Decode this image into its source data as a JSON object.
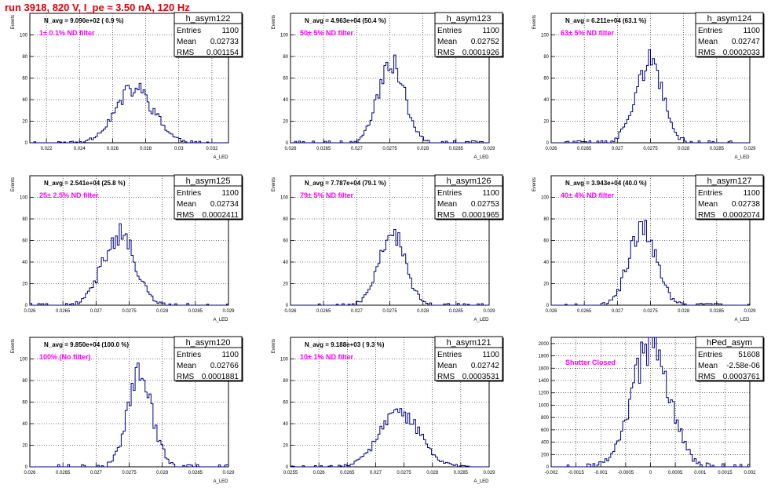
{
  "title": "run 3918,   820 V, I_pe ≈ 3.50 nA, 120 Hz",
  "chart_data": [
    {
      "type": "histogram",
      "name": "h_asym122",
      "entries": "1100",
      "mean": "0.02733",
      "rms": "0.001154",
      "n_avg": "N_avg = 9.090e+02 ( 0.9 %)",
      "label": "1± 0.1% ND filter",
      "ylabel": "Events",
      "xlabel": "A_LED",
      "xlim": [
        0.021,
        0.033
      ],
      "ylim": [
        0,
        120
      ],
      "xticks": [
        0.022,
        0.024,
        0.026,
        0.028,
        0.03,
        0.032
      ],
      "xticklabels": [
        "0.022",
        "0.024",
        "0.026",
        "0.028",
        "0.03",
        "0.032"
      ],
      "yticks": [
        0,
        20,
        40,
        60,
        80,
        100,
        120
      ],
      "yticklabels": [
        "0",
        "20",
        "40",
        "60",
        "80",
        "100",
        ""
      ],
      "mean_value": 0.02733,
      "rms_value": 0.001154,
      "peak": 50,
      "seed": 11
    },
    {
      "type": "histogram",
      "name": "h_asym123",
      "entries": "1100",
      "mean": "0.02752",
      "rms": "0.0001926",
      "n_avg": "N_avg = 4.963e+04 (50.4 %)",
      "label": "50± 5% ND filter",
      "ylabel": "Events",
      "xlabel": "A_LED",
      "xlim": [
        0.026,
        0.029
      ],
      "ylim": [
        0,
        120
      ],
      "xticks": [
        0.026,
        0.0265,
        0.027,
        0.0275,
        0.028,
        0.0285,
        0.029
      ],
      "xticklabels": [
        "0.026",
        "0.0265",
        "0.027",
        "0.0275",
        "0.028",
        "0.0285",
        "0.029"
      ],
      "yticks": [
        0,
        20,
        40,
        60,
        80,
        100,
        120
      ],
      "yticklabels": [
        "0",
        "20",
        "40",
        "60",
        "80",
        "100",
        ""
      ],
      "mean_value": 0.02752,
      "rms_value": 0.0001926,
      "peak": 78,
      "seed": 23
    },
    {
      "type": "histogram",
      "name": "h_asym124",
      "entries": "1100",
      "mean": "0.02747",
      "rms": "0.0002033",
      "n_avg": "N_avg = 6.211e+04 (63.1 %)",
      "label": "63± 5% ND filter",
      "ylabel": "Events",
      "xlabel": "A_LED",
      "xlim": [
        0.026,
        0.029
      ],
      "ylim": [
        0,
        120
      ],
      "xticks": [
        0.026,
        0.0265,
        0.027,
        0.0275,
        0.028,
        0.0285,
        0.029
      ],
      "xticklabels": [
        "0.026",
        "0.0265",
        "0.027",
        "0.0275",
        "0.028",
        "0.0285",
        "0.029"
      ],
      "yticks": [
        0,
        20,
        40,
        60,
        80,
        100,
        120
      ],
      "yticklabels": [
        "0",
        "20",
        "40",
        "60",
        "80",
        "100",
        ""
      ],
      "mean_value": 0.02747,
      "rms_value": 0.0002033,
      "peak": 75,
      "seed": 37
    },
    {
      "type": "histogram",
      "name": "h_asym125",
      "entries": "1100",
      "mean": "0.02734",
      "rms": "0.0002411",
      "n_avg": "N_avg = 2.541e+04 (25.8 %)",
      "label": "25± 2.5% ND filter",
      "ylabel": "Events",
      "xlabel": "A_LED",
      "xlim": [
        0.026,
        0.029
      ],
      "ylim": [
        0,
        120
      ],
      "xticks": [
        0.026,
        0.0265,
        0.027,
        0.0275,
        0.028,
        0.0285,
        0.029
      ],
      "xticklabels": [
        "0.026",
        "0.0265",
        "0.027",
        "0.0275",
        "0.028",
        "0.0285",
        "0.029"
      ],
      "yticks": [
        0,
        20,
        40,
        60,
        80,
        100,
        120
      ],
      "yticklabels": [
        "0",
        "20",
        "40",
        "60",
        "80",
        "100",
        ""
      ],
      "mean_value": 0.02734,
      "rms_value": 0.0002411,
      "peak": 67,
      "seed": 41
    },
    {
      "type": "histogram",
      "name": "h_asym126",
      "entries": "1100",
      "mean": "0.02753",
      "rms": "0.0001965",
      "n_avg": "N_avg = 7.787e+04 (79.1 %)",
      "label": "79± 5% ND filter",
      "ylabel": "Events",
      "xlabel": "A_LED",
      "xlim": [
        0.026,
        0.029
      ],
      "ylim": [
        0,
        120
      ],
      "xticks": [
        0.026,
        0.0265,
        0.027,
        0.0275,
        0.028,
        0.0285,
        0.029
      ],
      "xticklabels": [
        "0.026",
        "0.0265",
        "0.027",
        "0.0275",
        "0.028",
        "0.0285",
        "0.029"
      ],
      "yticks": [
        0,
        20,
        40,
        60,
        80,
        100,
        120
      ],
      "yticklabels": [
        "0",
        "20",
        "40",
        "60",
        "80",
        "100",
        ""
      ],
      "mean_value": 0.02753,
      "rms_value": 0.0001965,
      "peak": 68,
      "seed": 53
    },
    {
      "type": "histogram",
      "name": "h_asym127",
      "entries": "1100",
      "mean": "0.02738",
      "rms": "0.0002074",
      "n_avg": "N_avg = 3.943e+04 (40.0 %)",
      "label": "40± 4% ND filter",
      "ylabel": "Events",
      "xlabel": "A_LED",
      "xlim": [
        0.026,
        0.029
      ],
      "ylim": [
        0,
        120
      ],
      "xticks": [
        0.026,
        0.0265,
        0.027,
        0.0275,
        0.028,
        0.0285,
        0.029
      ],
      "xticklabels": [
        "0.026",
        "0.0265",
        "0.027",
        "0.0275",
        "0.028",
        "0.0285",
        "0.029"
      ],
      "yticks": [
        0,
        20,
        40,
        60,
        80,
        100,
        120
      ],
      "yticklabels": [
        "0",
        "20",
        "40",
        "60",
        "80",
        "100",
        ""
      ],
      "mean_value": 0.02738,
      "rms_value": 0.0002074,
      "peak": 70,
      "seed": 67
    },
    {
      "type": "histogram",
      "name": "h_asym120",
      "entries": "1100",
      "mean": "0.02766",
      "rms": "0.0001881",
      "n_avg": "N_avg = 9.850e+04 (100.0 %)",
      "label": "100% (No filter)",
      "ylabel": "Events",
      "xlabel": "A_LED",
      "xlim": [
        0.026,
        0.029
      ],
      "ylim": [
        0,
        120
      ],
      "xticks": [
        0.026,
        0.0265,
        0.027,
        0.0275,
        0.028,
        0.0285,
        0.029
      ],
      "xticklabels": [
        "0.026",
        "0.0265",
        "0.027",
        "0.0275",
        "0.028",
        "0.0285",
        "0.029"
      ],
      "yticks": [
        0,
        20,
        40,
        60,
        80,
        100,
        120
      ],
      "yticklabels": [
        "0",
        "20",
        "40",
        "60",
        "80",
        "100",
        ""
      ],
      "mean_value": 0.02766,
      "rms_value": 0.0001881,
      "peak": 85,
      "seed": 71
    },
    {
      "type": "histogram",
      "name": "h_asym121",
      "entries": "1100",
      "mean": "0.02742",
      "rms": "0.0003531",
      "n_avg": "N_avg = 9.188e+03 ( 9.3 %)",
      "label": "10± 1% ND filter",
      "ylabel": "Events",
      "xlabel": "A_LED",
      "xlim": [
        0.0255,
        0.029
      ],
      "ylim": [
        0,
        120
      ],
      "xticks": [
        0.0255,
        0.026,
        0.0265,
        0.027,
        0.0275,
        0.028,
        0.0285,
        0.029
      ],
      "xticklabels": [
        "0.0255",
        "0.026",
        "0.0265",
        "0.027",
        "0.0275",
        "0.028",
        "0.0285",
        "0.029"
      ],
      "yticks": [
        0,
        20,
        40,
        60,
        80,
        100,
        120
      ],
      "yticklabels": [
        "0",
        "20",
        "40",
        "60",
        "80",
        "100",
        ""
      ],
      "mean_value": 0.02742,
      "rms_value": 0.0003531,
      "peak": 50,
      "seed": 83
    },
    {
      "type": "histogram",
      "name": "hPed_asym",
      "entries": "51608",
      "mean": "-2.58e-06",
      "rms": "0.0003761",
      "n_avg": "",
      "label": "Shutter Closed",
      "ylabel": "",
      "xlabel": "",
      "xlim": [
        -0.002,
        0.002
      ],
      "ylim": [
        0,
        2100
      ],
      "xticks": [
        -0.002,
        -0.0015,
        -0.001,
        -0.0005,
        0,
        0.0005,
        0.001,
        0.0015,
        0.002
      ],
      "xticklabels": [
        "-0.002",
        "-0.0015",
        "-0.001",
        "-0.0005",
        "0",
        "0.0005",
        "0.001",
        "0.0015",
        "0.002"
      ],
      "yticks": [
        0,
        200,
        400,
        600,
        800,
        1000,
        1200,
        1400,
        1600,
        1800,
        2000
      ],
      "yticklabels": [
        "0",
        "200",
        "400",
        "600",
        "800",
        "1000",
        "1200",
        "1400",
        "1600",
        "1800",
        "2000"
      ],
      "mean_value": 0.0,
      "rms_value": 0.0003761,
      "peak": 1980,
      "seed": 97
    }
  ]
}
